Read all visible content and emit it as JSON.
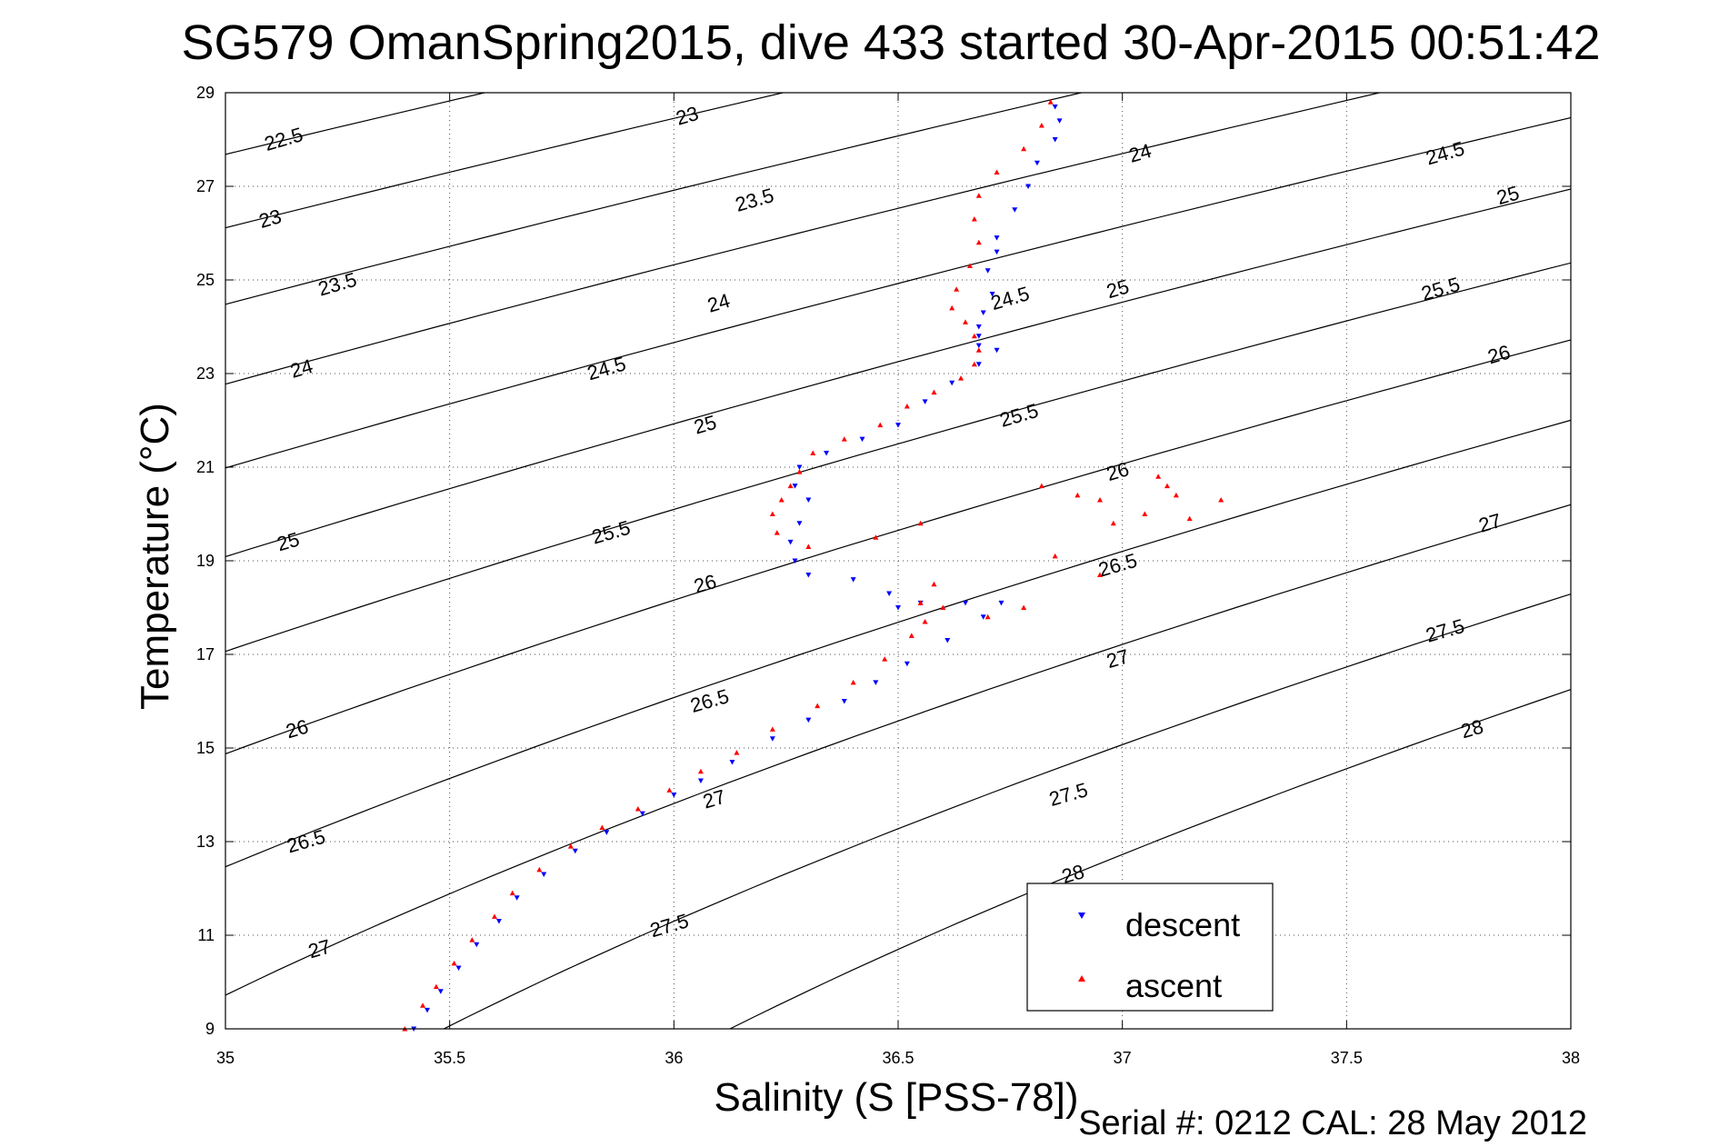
{
  "chart_data": {
    "type": "scatter",
    "title": "SG579 OmanSpring2015, dive 433 started 30-Apr-2015 00:51:42",
    "xlabel": "Salinity (S [PSS-78])",
    "ylabel": "Temperature (°C)",
    "footer": "Serial #: 0212  CAL: 28 May 2012",
    "xlim": [
      35,
      38
    ],
    "ylim": [
      9,
      29
    ],
    "xticks": [
      "35",
      "35.5",
      "36",
      "36.5",
      "37",
      "37.5",
      "38"
    ],
    "yticks": [
      "9",
      "11",
      "13",
      "15",
      "17",
      "19",
      "21",
      "23",
      "25",
      "27",
      "29"
    ],
    "grid": true,
    "legend_position": "bottom-right",
    "contours": {
      "levels": [
        22.5,
        23,
        23.5,
        24,
        24.5,
        25,
        25.5,
        26,
        26.5,
        27,
        27.5,
        28
      ],
      "color": "#000000",
      "labels": [
        {
          "text": "22.5",
          "s": 35.13,
          "t": 28.0
        },
        {
          "text": "23",
          "s": 36.03,
          "t": 28.5
        },
        {
          "text": "23",
          "s": 35.1,
          "t": 26.3
        },
        {
          "text": "23.5",
          "s": 36.18,
          "t": 26.7
        },
        {
          "text": "23.5",
          "s": 35.25,
          "t": 24.9
        },
        {
          "text": "24",
          "s": 37.04,
          "t": 27.7
        },
        {
          "text": "24",
          "s": 36.1,
          "t": 24.5
        },
        {
          "text": "24",
          "s": 35.17,
          "t": 23.1
        },
        {
          "text": "24.5",
          "s": 37.72,
          "t": 27.7
        },
        {
          "text": "24.5",
          "s": 36.75,
          "t": 24.6
        },
        {
          "text": "24.5",
          "s": 35.85,
          "t": 23.1
        },
        {
          "text": "25",
          "s": 37.86,
          "t": 26.8
        },
        {
          "text": "25",
          "s": 36.99,
          "t": 24.8
        },
        {
          "text": "25",
          "s": 36.07,
          "t": 21.9
        },
        {
          "text": "25",
          "s": 35.14,
          "t": 19.4
        },
        {
          "text": "25.5",
          "s": 37.71,
          "t": 24.8
        },
        {
          "text": "25.5",
          "s": 36.77,
          "t": 22.1
        },
        {
          "text": "25.5",
          "s": 35.86,
          "t": 19.6
        },
        {
          "text": "26",
          "s": 37.84,
          "t": 23.4
        },
        {
          "text": "26",
          "s": 36.99,
          "t": 20.9
        },
        {
          "text": "26",
          "s": 36.07,
          "t": 18.5
        },
        {
          "text": "26",
          "s": 35.16,
          "t": 15.4
        },
        {
          "text": "26.5",
          "s": 36.99,
          "t": 18.9
        },
        {
          "text": "26.5",
          "s": 36.08,
          "t": 16.0
        },
        {
          "text": "26.5",
          "s": 35.18,
          "t": 13.0
        },
        {
          "text": "27",
          "s": 37.82,
          "t": 19.8
        },
        {
          "text": "27",
          "s": 36.99,
          "t": 16.9
        },
        {
          "text": "27",
          "s": 36.09,
          "t": 13.9
        },
        {
          "text": "27",
          "s": 35.21,
          "t": 10.7
        },
        {
          "text": "27.5",
          "s": 37.72,
          "t": 17.5
        },
        {
          "text": "27.5",
          "s": 36.88,
          "t": 14.0
        },
        {
          "text": "27.5",
          "s": 35.99,
          "t": 11.2
        },
        {
          "text": "28",
          "s": 37.78,
          "t": 15.4
        },
        {
          "text": "28",
          "s": 36.89,
          "t": 12.3
        }
      ]
    },
    "series": [
      {
        "name": "descent",
        "color": "#0000ff",
        "marker": "down-triangle",
        "points": [
          [
            35.42,
            9.0
          ],
          [
            35.45,
            9.4
          ],
          [
            35.48,
            9.8
          ],
          [
            35.52,
            10.3
          ],
          [
            35.56,
            10.8
          ],
          [
            35.61,
            11.3
          ],
          [
            35.65,
            11.8
          ],
          [
            35.71,
            12.3
          ],
          [
            35.78,
            12.8
          ],
          [
            35.85,
            13.2
          ],
          [
            35.93,
            13.6
          ],
          [
            36.0,
            14.0
          ],
          [
            36.06,
            14.3
          ],
          [
            36.13,
            14.7
          ],
          [
            36.22,
            15.2
          ],
          [
            36.3,
            15.6
          ],
          [
            36.38,
            16.0
          ],
          [
            36.45,
            16.4
          ],
          [
            36.52,
            16.8
          ],
          [
            36.61,
            17.3
          ],
          [
            36.69,
            17.8
          ],
          [
            36.73,
            18.1
          ],
          [
            36.65,
            18.1
          ],
          [
            36.55,
            18.1
          ],
          [
            36.5,
            18.0
          ],
          [
            36.48,
            18.3
          ],
          [
            36.4,
            18.6
          ],
          [
            36.3,
            18.7
          ],
          [
            36.27,
            19.0
          ],
          [
            36.26,
            19.4
          ],
          [
            36.28,
            19.8
          ],
          [
            36.3,
            20.3
          ],
          [
            36.27,
            20.6
          ],
          [
            36.28,
            21.0
          ],
          [
            36.34,
            21.3
          ],
          [
            36.42,
            21.6
          ],
          [
            36.5,
            21.9
          ],
          [
            36.56,
            22.4
          ],
          [
            36.62,
            22.8
          ],
          [
            36.68,
            23.2
          ],
          [
            36.72,
            23.5
          ],
          [
            36.68,
            23.6
          ],
          [
            36.68,
            23.8
          ],
          [
            36.68,
            24.0
          ],
          [
            36.69,
            24.3
          ],
          [
            36.71,
            24.7
          ],
          [
            36.7,
            25.2
          ],
          [
            36.72,
            25.6
          ],
          [
            36.72,
            25.9
          ],
          [
            36.76,
            26.5
          ],
          [
            36.79,
            27.0
          ],
          [
            36.81,
            27.5
          ],
          [
            36.85,
            28.0
          ],
          [
            36.86,
            28.4
          ],
          [
            36.85,
            28.7
          ]
        ]
      },
      {
        "name": "ascent",
        "color": "#ff0000",
        "marker": "up-triangle",
        "points": [
          [
            35.4,
            9.0
          ],
          [
            35.44,
            9.5
          ],
          [
            35.47,
            9.9
          ],
          [
            35.51,
            10.4
          ],
          [
            35.55,
            10.9
          ],
          [
            35.6,
            11.4
          ],
          [
            35.64,
            11.9
          ],
          [
            35.7,
            12.4
          ],
          [
            35.77,
            12.9
          ],
          [
            35.84,
            13.3
          ],
          [
            35.92,
            13.7
          ],
          [
            35.99,
            14.1
          ],
          [
            36.06,
            14.5
          ],
          [
            36.14,
            14.9
          ],
          [
            36.22,
            15.4
          ],
          [
            36.32,
            15.9
          ],
          [
            36.4,
            16.4
          ],
          [
            36.47,
            16.9
          ],
          [
            36.53,
            17.4
          ],
          [
            36.56,
            17.7
          ],
          [
            36.6,
            18.0
          ],
          [
            36.58,
            18.5
          ],
          [
            36.55,
            18.1
          ],
          [
            36.3,
            19.3
          ],
          [
            36.23,
            19.6
          ],
          [
            36.22,
            20.0
          ],
          [
            36.24,
            20.3
          ],
          [
            36.26,
            20.6
          ],
          [
            36.28,
            20.9
          ],
          [
            36.31,
            21.3
          ],
          [
            36.38,
            21.6
          ],
          [
            36.46,
            21.9
          ],
          [
            36.52,
            22.3
          ],
          [
            36.58,
            22.6
          ],
          [
            36.64,
            22.9
          ],
          [
            36.67,
            23.2
          ],
          [
            36.68,
            23.5
          ],
          [
            36.67,
            23.8
          ],
          [
            36.65,
            24.1
          ],
          [
            36.62,
            24.4
          ],
          [
            36.63,
            24.8
          ],
          [
            36.66,
            25.3
          ],
          [
            36.68,
            25.8
          ],
          [
            36.67,
            26.3
          ],
          [
            36.68,
            26.8
          ],
          [
            36.72,
            27.3
          ],
          [
            36.78,
            27.8
          ],
          [
            36.82,
            28.3
          ],
          [
            36.84,
            28.8
          ],
          [
            36.55,
            19.8
          ],
          [
            36.45,
            19.5
          ],
          [
            36.95,
            20.3
          ],
          [
            36.82,
            20.6
          ],
          [
            36.9,
            20.4
          ],
          [
            37.08,
            20.8
          ],
          [
            37.12,
            20.4
          ],
          [
            37.05,
            20.0
          ],
          [
            37.15,
            19.9
          ],
          [
            37.22,
            20.3
          ],
          [
            37.1,
            20.6
          ],
          [
            36.98,
            19.8
          ],
          [
            36.85,
            19.1
          ],
          [
            36.95,
            18.7
          ],
          [
            36.78,
            18.0
          ],
          [
            36.7,
            17.8
          ]
        ]
      }
    ],
    "legend": [
      "descent",
      "ascent"
    ]
  }
}
